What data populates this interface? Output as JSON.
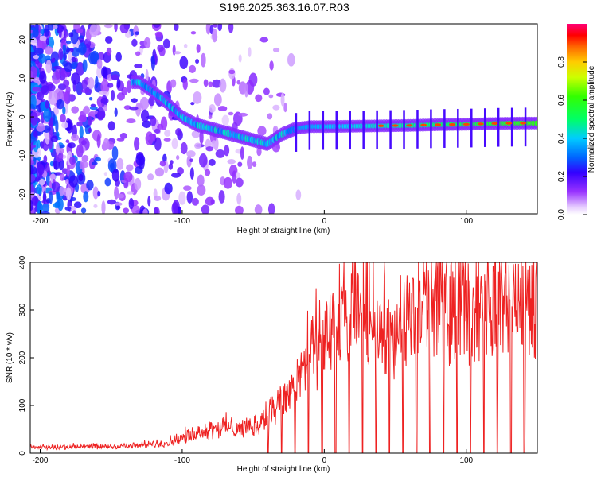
{
  "title": "S196.2025.363.16.07.R03",
  "colors": {
    "snr_line": "#ee2222",
    "frame": "#000000",
    "background": "#ffffff"
  },
  "chart_data": [
    {
      "type": "heatmap",
      "name": "spectrogram",
      "title": "S196.2025.363.16.07.R03",
      "xlabel": "Height of straight line (km)",
      "ylabel": "Frequency (Hz)",
      "xlim": [
        -207,
        150
      ],
      "ylim": [
        -25,
        24
      ],
      "xticks": [
        -200,
        -100,
        0,
        100
      ],
      "yticks": [
        -20,
        -10,
        0,
        10,
        20
      ],
      "colorbar": {
        "label": "Normalized spectral amplitude",
        "range": [
          0,
          1
        ],
        "ticks": [
          0.0,
          0.2,
          0.4,
          0.6,
          0.8
        ],
        "colormap": "rainbow"
      },
      "ridge": {
        "description": "Spectral peak frequency vs height",
        "x": [
          -130,
          -115,
          -100,
          -90,
          -80,
          -70,
          -60,
          -50,
          -40,
          -30,
          -20,
          -10,
          0,
          20,
          40,
          60,
          80,
          100,
          120,
          140
        ],
        "y": [
          9,
          5,
          0,
          -2,
          -3,
          -4,
          -5,
          -6,
          -7,
          -4.5,
          -3,
          -2.5,
          -2.5,
          -2.4,
          -2.3,
          -2.2,
          -2.0,
          -1.9,
          -1.7,
          -1.6
        ]
      }
    },
    {
      "type": "line",
      "name": "snr",
      "xlabel": "Height of straight line (km)",
      "ylabel": "SNR (10 * v/v)",
      "xlim": [
        -207,
        150
      ],
      "ylim": [
        0,
        400
      ],
      "xticks": [
        -200,
        -100,
        0,
        100
      ],
      "yticks": [
        0,
        100,
        200,
        300,
        400
      ],
      "series": [
        {
          "name": "SNR",
          "x": [
            -207,
            -180,
            -150,
            -130,
            -110,
            -100,
            -90,
            -80,
            -70,
            -60,
            -50,
            -45,
            -40,
            -35,
            -30,
            -25,
            -20,
            -15,
            -10,
            -5,
            0,
            5,
            10,
            15,
            20,
            25,
            30,
            35,
            40,
            45,
            50,
            55,
            60,
            65,
            70,
            80,
            90,
            100,
            110,
            120,
            130,
            140,
            150
          ],
          "y": [
            10,
            12,
            12,
            14,
            20,
            28,
            38,
            45,
            48,
            45,
            50,
            55,
            75,
            85,
            95,
            110,
            135,
            160,
            185,
            195,
            210,
            225,
            235,
            245,
            250,
            255,
            255,
            245,
            235,
            215,
            205,
            215,
            250,
            275,
            285,
            285,
            285,
            280,
            285,
            285,
            290,
            280,
            270
          ]
        }
      ]
    }
  ]
}
